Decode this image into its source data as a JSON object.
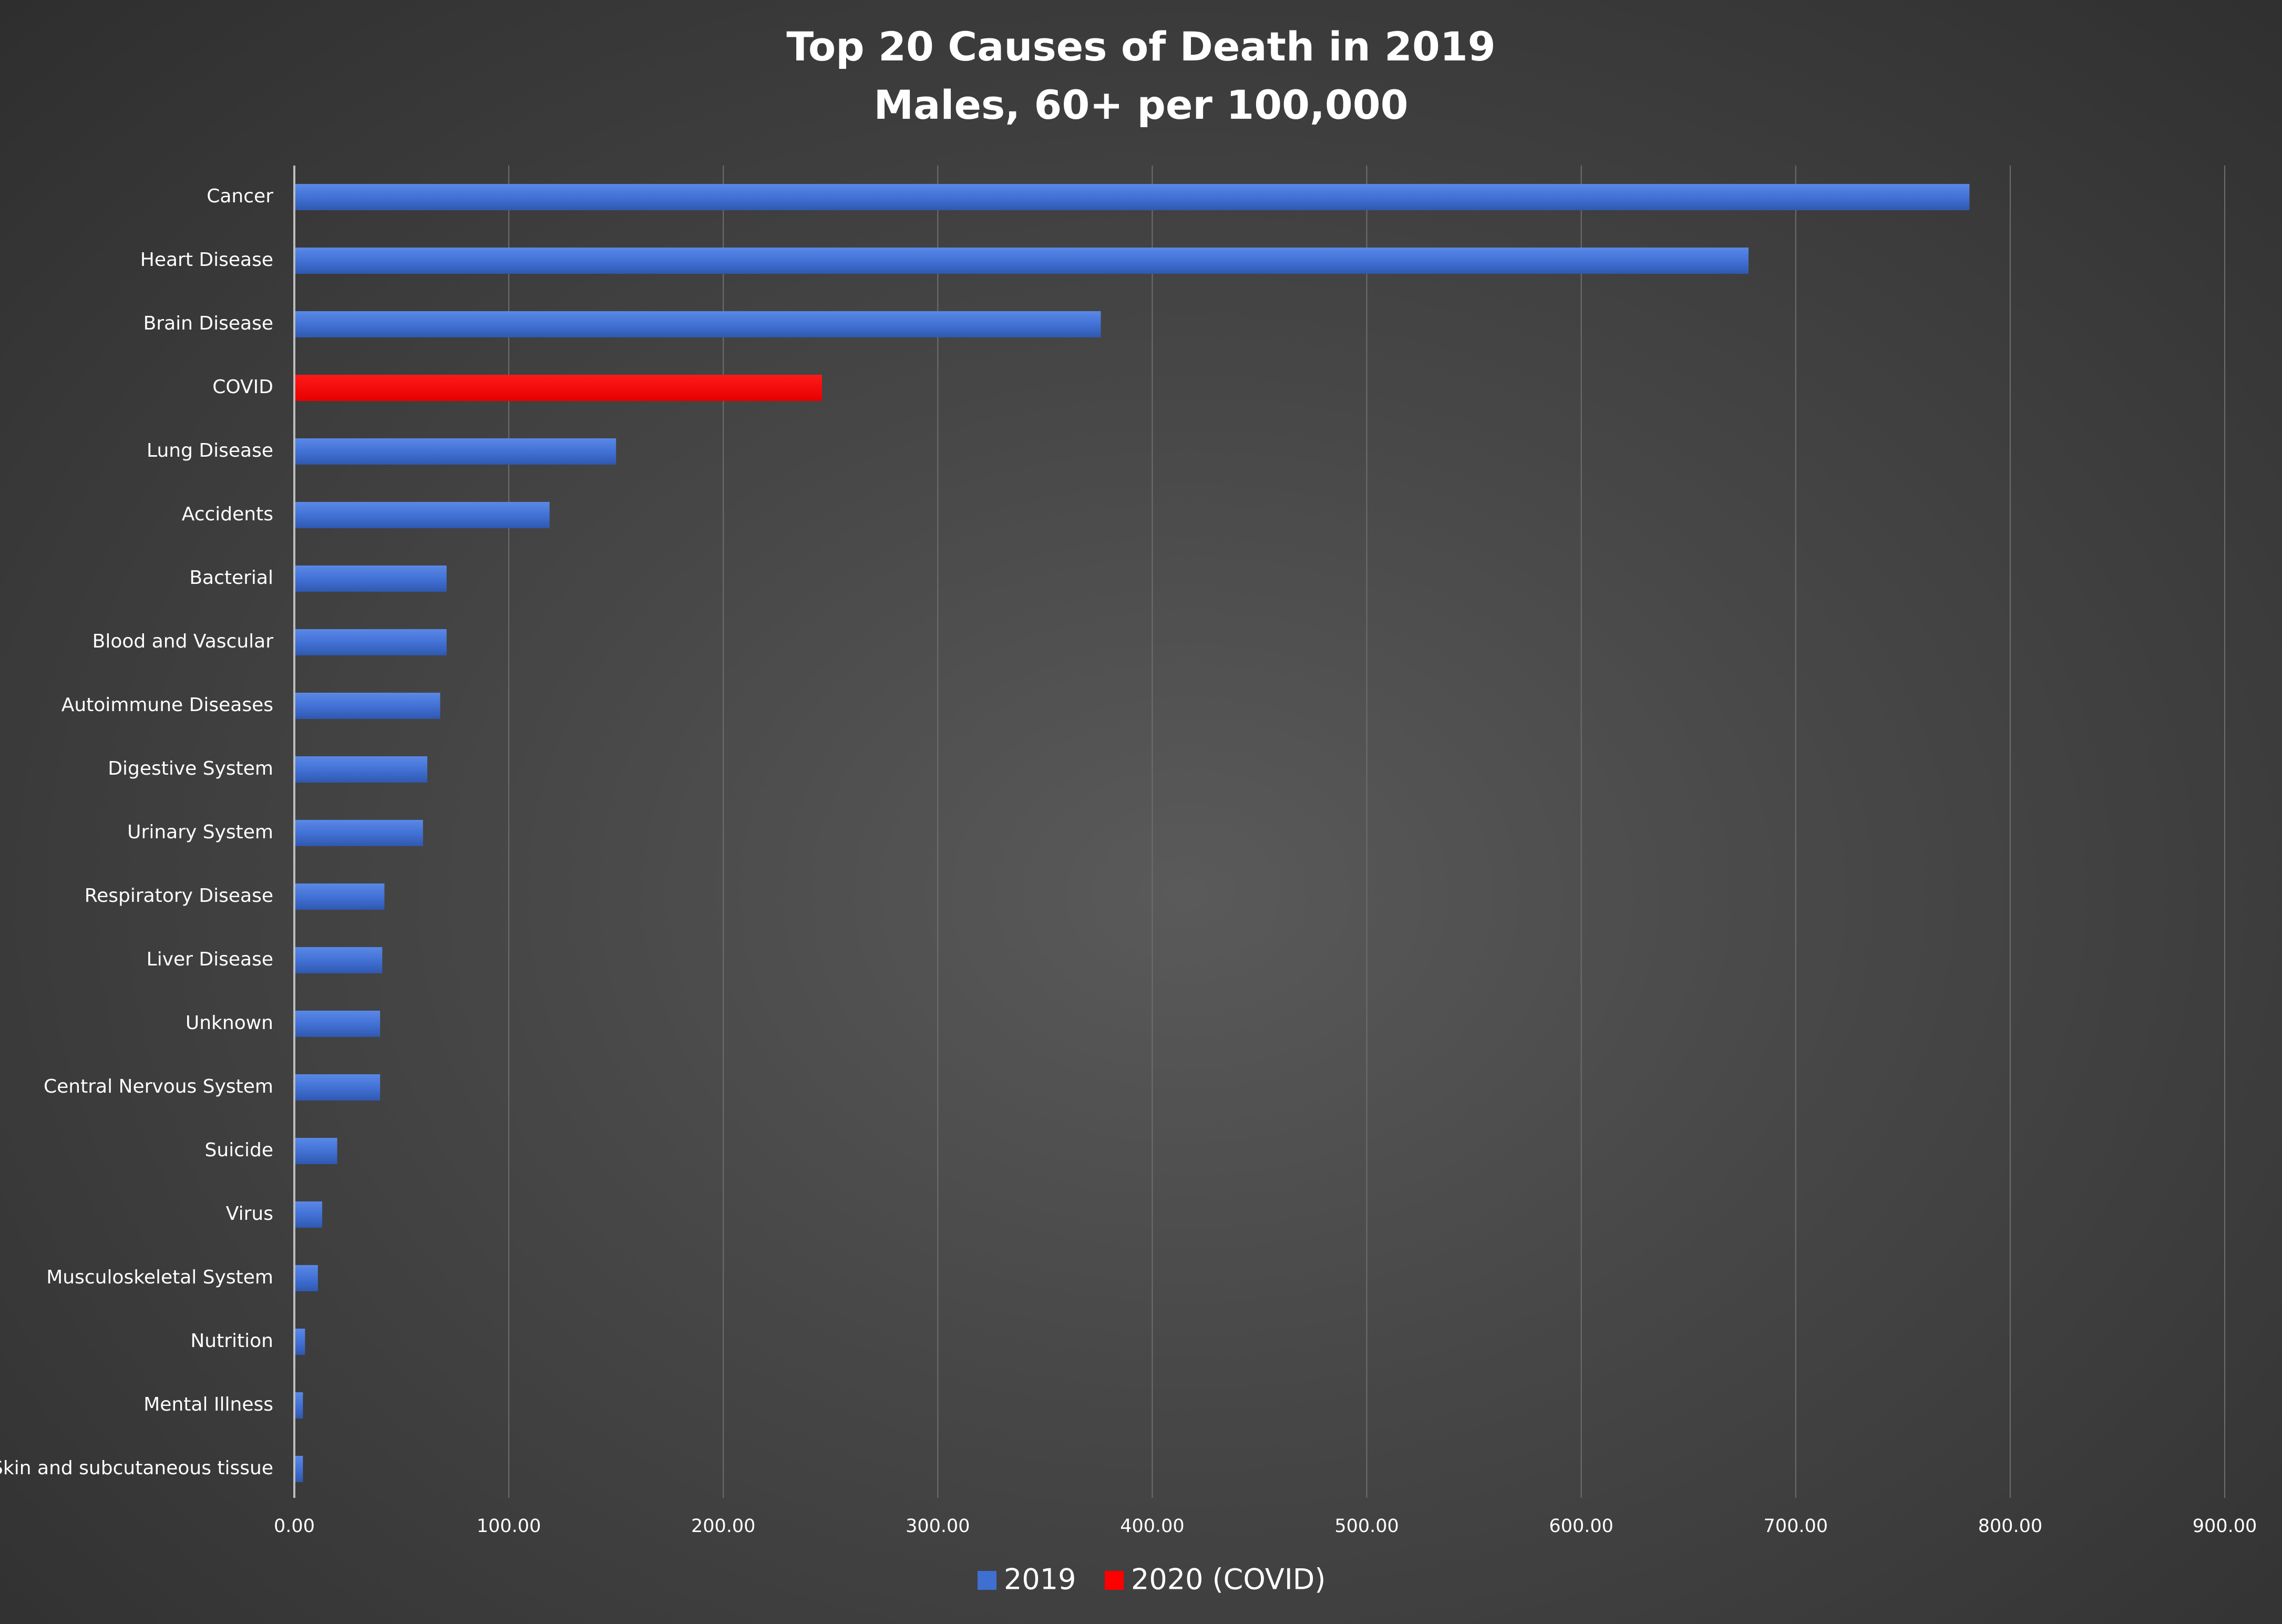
{
  "chart_data": {
    "type": "bar",
    "orientation": "horizontal",
    "title": "Top 20 Causes of Death in 2019",
    "subtitle": "Males, 60+ per 100,000",
    "categories": [
      "Cancer",
      "Heart Disease",
      "Brain Disease",
      "COVID",
      "Lung Disease",
      "Accidents",
      "Bacterial",
      "Blood and Vascular",
      "Autoimmune Diseases",
      "Digestive System",
      "Urinary System",
      "Respiratory Disease",
      "Liver Disease",
      "Unknown",
      "Central Nervous System",
      "Suicide",
      "Virus",
      "Musculoskeletal System",
      "Nutrition",
      "Mental Illness",
      "Skin and subcutaneous tissue"
    ],
    "values": [
      781,
      678,
      376,
      246,
      150,
      119,
      71,
      71,
      68,
      62,
      60,
      42,
      41,
      40,
      40,
      20,
      13,
      11,
      5,
      4,
      4
    ],
    "series_index": [
      0,
      0,
      0,
      1,
      0,
      0,
      0,
      0,
      0,
      0,
      0,
      0,
      0,
      0,
      0,
      0,
      0,
      0,
      0,
      0,
      0
    ],
    "series": [
      {
        "name": "2019",
        "color": "#3f6fd1"
      },
      {
        "name": "2020 (COVID)",
        "color": "#ff0000"
      }
    ],
    "xlim": [
      0,
      900
    ],
    "xticks": [
      "0.00",
      "100.00",
      "200.00",
      "300.00",
      "400.00",
      "500.00",
      "600.00",
      "700.00",
      "800.00",
      "900.00"
    ],
    "xtick_values": [
      0,
      100,
      200,
      300,
      400,
      500,
      600,
      700,
      800,
      900
    ],
    "grid": true,
    "legend_position": "bottom"
  }
}
